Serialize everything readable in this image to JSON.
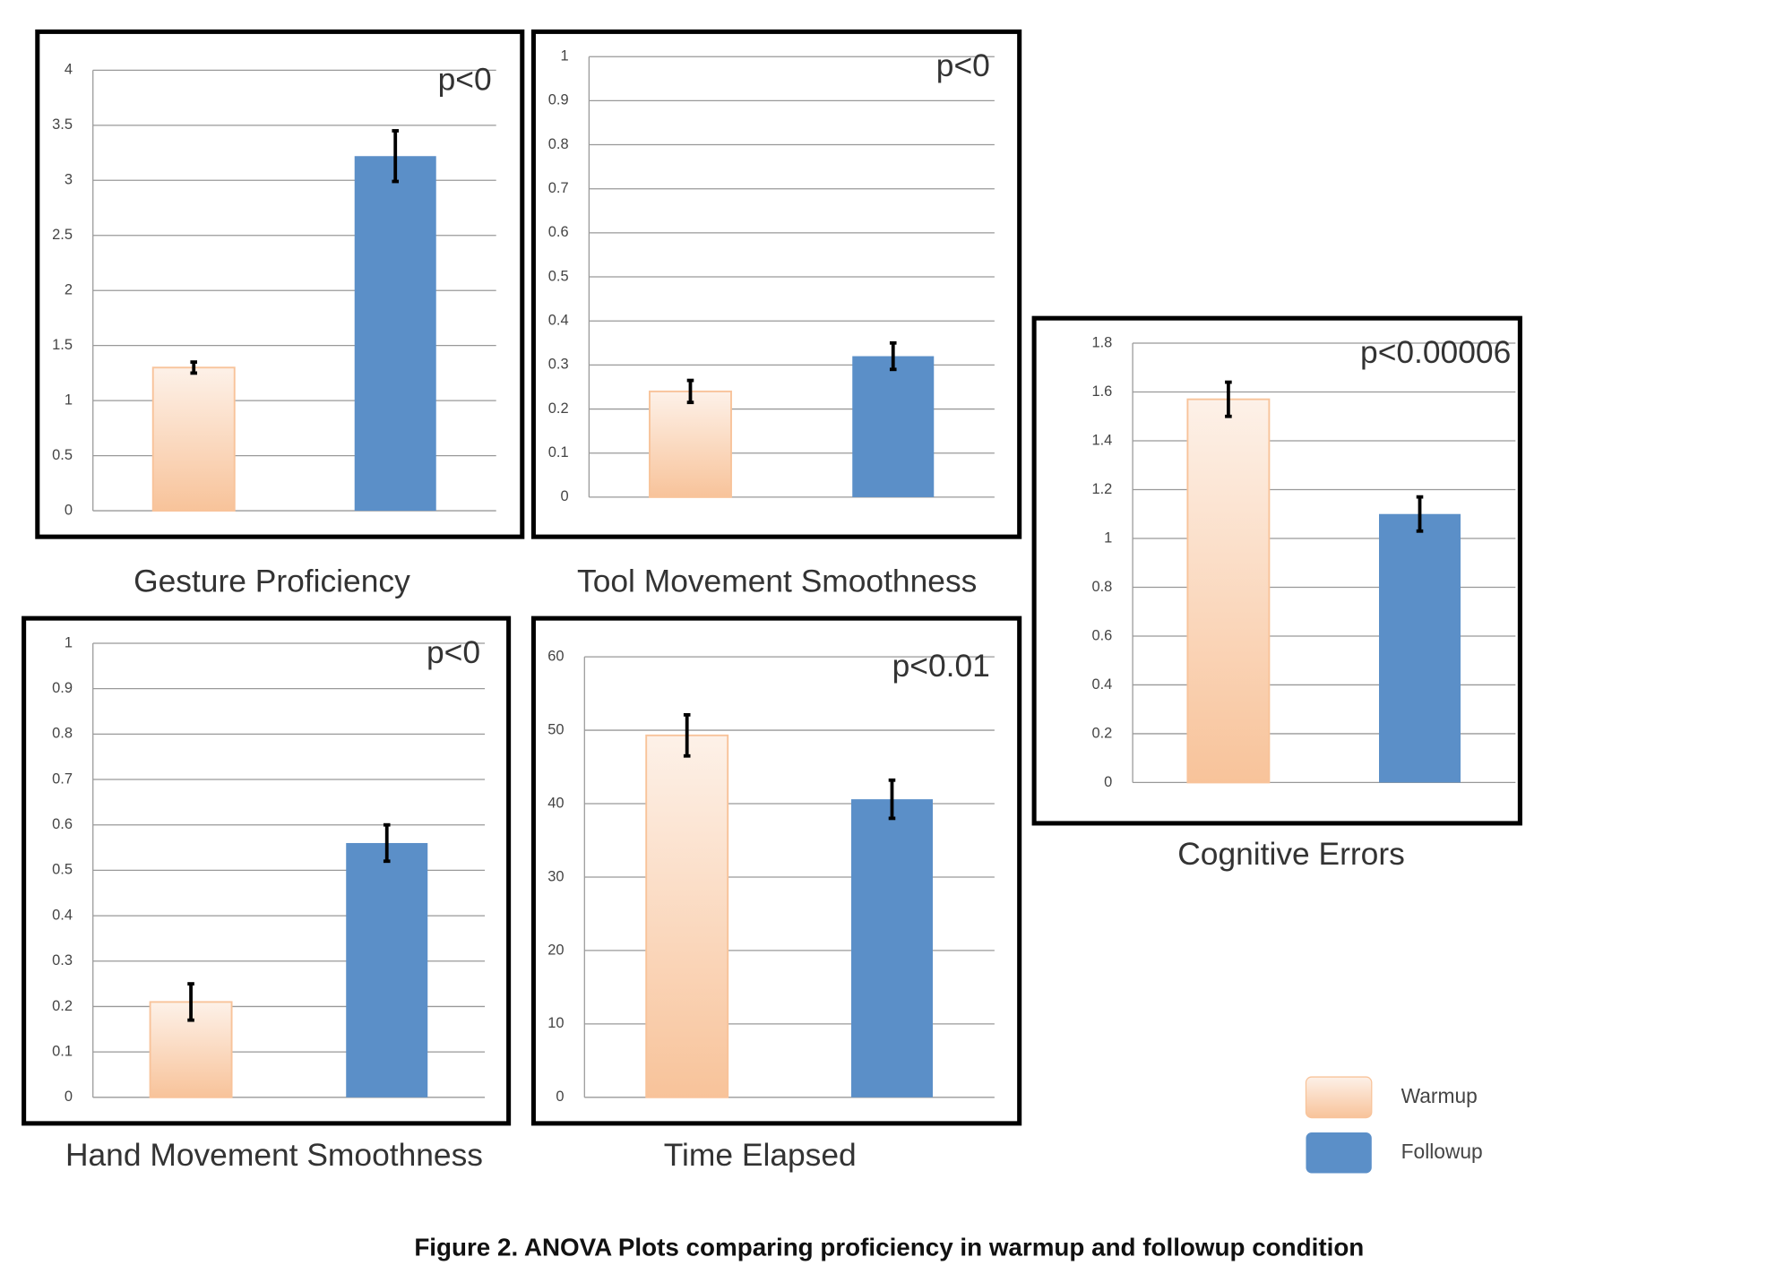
{
  "chart_data": [
    {
      "type": "bar",
      "title": "Gesture Proficiency",
      "annotation": "p<0",
      "ylim": [
        0,
        4
      ],
      "yticks": [
        0,
        0.5,
        1,
        1.5,
        2,
        2.5,
        3,
        3.5,
        4
      ],
      "grid": true,
      "series": [
        {
          "color": "#f8c39a",
          "values": [
            1.3
          ],
          "errors": [
            0.05
          ]
        },
        {
          "color": "#5b8fc8",
          "values": [
            3.22
          ],
          "errors": [
            0.23
          ]
        }
      ]
    },
    {
      "type": "bar",
      "title": "Tool Movement Smoothness",
      "annotation": "p<0",
      "ylim": [
        0,
        1
      ],
      "yticks": [
        0,
        0.1,
        0.2,
        0.3,
        0.4,
        0.5,
        0.6,
        0.7,
        0.8,
        0.9,
        1
      ],
      "grid": true,
      "series": [
        {
          "color": "#f8c39a",
          "values": [
            0.24
          ],
          "errors": [
            0.025
          ]
        },
        {
          "color": "#5b8fc8",
          "values": [
            0.32
          ],
          "errors": [
            0.03
          ]
        }
      ]
    },
    {
      "type": "bar",
      "title": "Cognitive Errors",
      "annotation": "p<0.00006",
      "ylim": [
        0,
        1.8
      ],
      "yticks": [
        0,
        0.2,
        0.4,
        0.6,
        0.8,
        1,
        1.2,
        1.4,
        1.6,
        1.8
      ],
      "grid": true,
      "series": [
        {
          "color": "#f8c39a",
          "values": [
            1.57
          ],
          "errors": [
            0.07
          ]
        },
        {
          "color": "#5b8fc8",
          "values": [
            1.1
          ],
          "errors": [
            0.07
          ]
        }
      ]
    },
    {
      "type": "bar",
      "title": "Hand Movement Smoothness",
      "annotation": "p<0",
      "ylim": [
        0,
        1
      ],
      "yticks": [
        0,
        0.1,
        0.2,
        0.3,
        0.4,
        0.5,
        0.6,
        0.7,
        0.8,
        0.9,
        1
      ],
      "grid": true,
      "series": [
        {
          "color": "#f8c39a",
          "values": [
            0.21
          ],
          "errors": [
            0.04
          ]
        },
        {
          "color": "#5b8fc8",
          "values": [
            0.56
          ],
          "errors": [
            0.04
          ]
        }
      ]
    },
    {
      "type": "bar",
      "title": "Time Elapsed",
      "annotation": "p<0.01",
      "ylim": [
        0,
        60
      ],
      "yticks": [
        0,
        10,
        20,
        30,
        40,
        50,
        60
      ],
      "grid": true,
      "series": [
        {
          "color": "#f8c39a",
          "values": [
            49.3
          ],
          "errors": [
            2.8
          ]
        },
        {
          "color": "#5b8fc8",
          "values": [
            40.6
          ],
          "errors": [
            2.6
          ]
        }
      ]
    }
  ],
  "legend": [
    {
      "name": "Warmup",
      "color": "#f8c39a"
    },
    {
      "name": "Followup",
      "color": "#5b8fc8"
    }
  ],
  "caption": "Figure 2. ANOVA Plots comparing proficiency in warmup and followup condition"
}
